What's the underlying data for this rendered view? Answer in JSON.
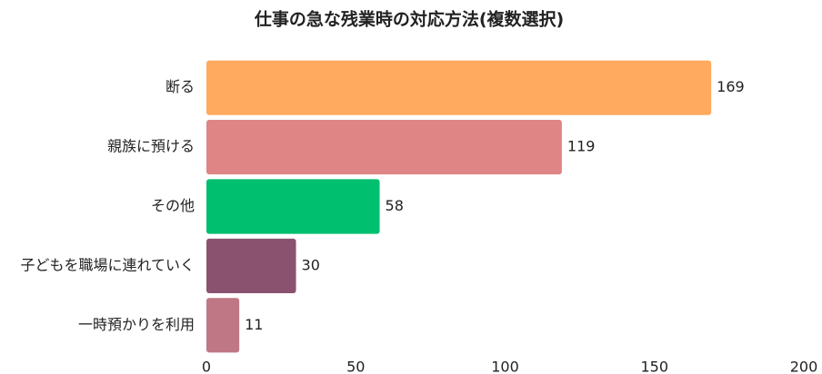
{
  "chart_data": {
    "type": "hbar",
    "title": "仕事の急な残業時の対応方法(複数選択)",
    "categories": [
      "断る",
      "親族に預ける",
      "その他",
      "子どもを職場に連れていく",
      "一時預かりを利用"
    ],
    "values": [
      169,
      119,
      58,
      30,
      11
    ],
    "colors": [
      "#ffaa5e",
      "#e08585",
      "#00bf6f",
      "#8b5270",
      "#bf7785"
    ],
    "xlim": [
      0,
      200
    ],
    "xticks": [
      0,
      50,
      100,
      150,
      200
    ],
    "grid": false
  }
}
